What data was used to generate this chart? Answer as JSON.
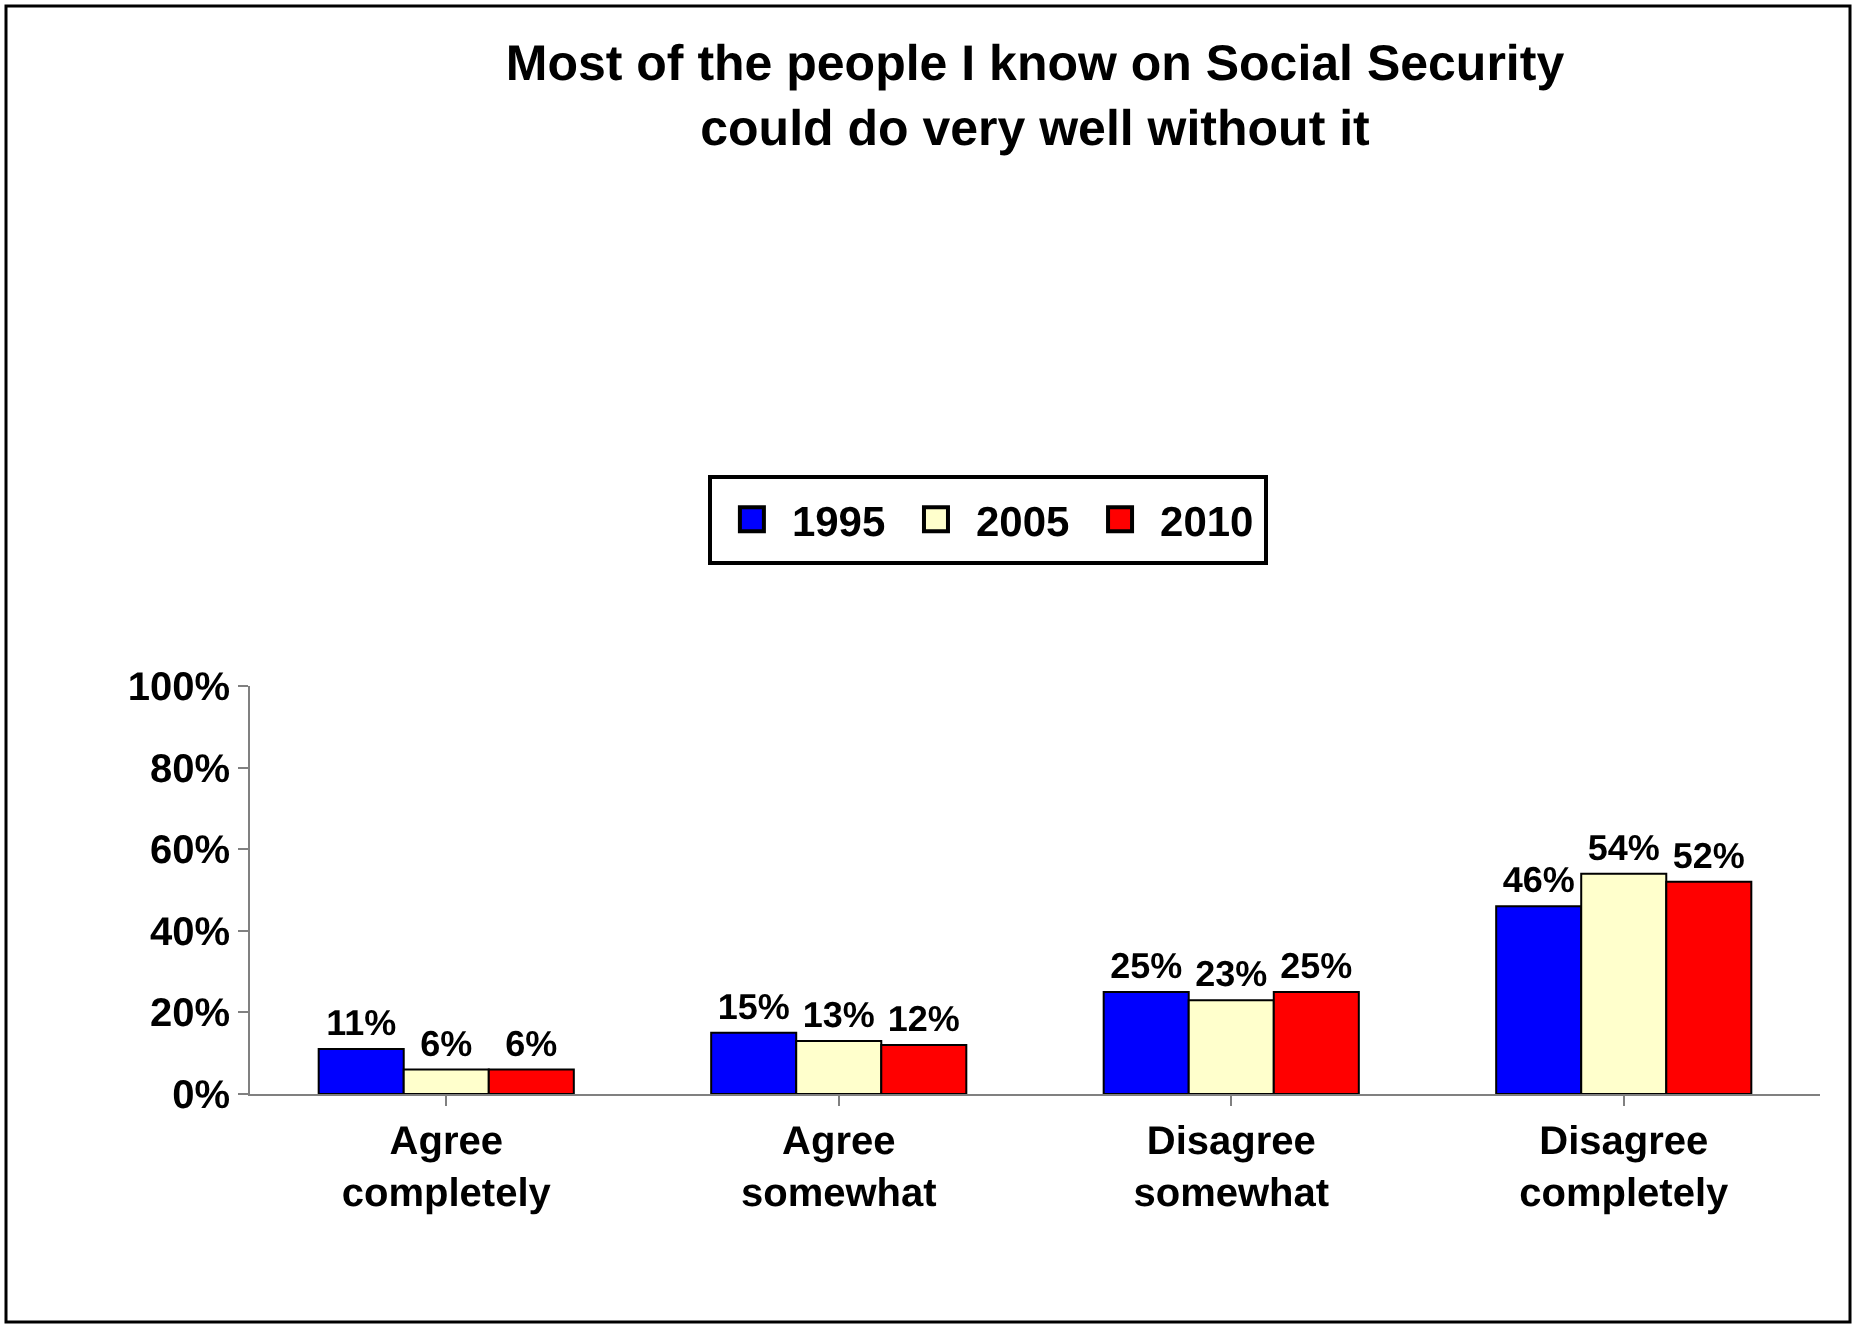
{
  "chart_data": {
    "type": "bar",
    "title": "Most of the people I know on Social Security could do very well without it",
    "categories": [
      "Agree completely",
      "Agree somewhat",
      "Disagree somewhat",
      "Disagree completely"
    ],
    "series": [
      {
        "name": "1995",
        "color": "#0000ff",
        "values": [
          11,
          15,
          25,
          46
        ],
        "value_labels": [
          "11%",
          "15%",
          "25%",
          "46%"
        ]
      },
      {
        "name": "2005",
        "color": "#ffffcc",
        "values": [
          6,
          13,
          23,
          54
        ],
        "value_labels": [
          "6%",
          "13%",
          "23%",
          "54%"
        ]
      },
      {
        "name": "2010",
        "color": "#ff0000",
        "values": [
          6,
          12,
          25,
          52
        ],
        "value_labels": [
          "6%",
          "12%",
          "25%",
          "52%"
        ]
      }
    ],
    "ylim": [
      0,
      100
    ],
    "yticks": [
      {
        "value": 0,
        "label": "0%"
      },
      {
        "value": 20,
        "label": "20%"
      },
      {
        "value": 40,
        "label": "40%"
      },
      {
        "value": 60,
        "label": "60%"
      },
      {
        "value": 80,
        "label": "80%"
      },
      {
        "value": 100,
        "label": "100%"
      }
    ],
    "legend": "top"
  }
}
